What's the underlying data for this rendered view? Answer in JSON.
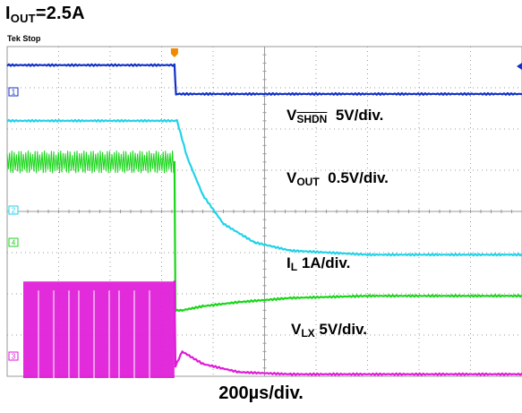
{
  "title": {
    "main": "I",
    "sub": "OUT",
    "rest": "=2.5A"
  },
  "scope_status": "Tek Stop",
  "timebase_label": "200µs/div.",
  "colors": {
    "ch1": "#1030c8",
    "ch2": "#22d3e8",
    "ch3": "#e01ad8",
    "ch4": "#19d619",
    "trigger": "#f08a00",
    "bar": "#c050c0",
    "grid": "#9a9a9a"
  },
  "channel_markers": {
    "ch1": "1",
    "ch2": "2",
    "ch4": "4",
    "ch3": "3"
  },
  "annotations": {
    "shdn": {
      "v": "V",
      "sub": "SHDN",
      "scale": "5V/div."
    },
    "vout": {
      "v": "V",
      "sub": "OUT",
      "scale": "0.5V/div."
    },
    "il": {
      "v": "I",
      "sub": "L",
      "scale": "1A/div."
    },
    "vlx": {
      "v": "V",
      "sub": "LX",
      "scale": "5V/div."
    }
  },
  "chart_data": {
    "type": "line",
    "x_unit": "div",
    "x_range": [
      0,
      10
    ],
    "y_unit": "div",
    "y_range": [
      0,
      8
    ],
    "event_x": 3.25,
    "grid": true,
    "series": [
      {
        "channel": "ch1",
        "x": [
          0,
          3.25,
          3.28,
          10
        ],
        "y": [
          7.55,
          7.55,
          6.85,
          6.85
        ]
      },
      {
        "channel": "ch2",
        "x": [
          0,
          3.3,
          3.5,
          3.8,
          4.2,
          4.8,
          5.5,
          7,
          10
        ],
        "y": [
          6.2,
          6.2,
          5.3,
          4.4,
          3.7,
          3.25,
          3.05,
          2.95,
          2.95
        ]
      },
      {
        "channel": "ch4",
        "x": [
          0,
          3.25,
          3.27,
          3.4,
          3.8,
          4.5,
          5.5,
          7,
          10
        ],
        "y": [
          5.2,
          5.2,
          1.6,
          1.6,
          1.7,
          1.8,
          1.9,
          1.95,
          1.95
        ],
        "ripple_until": 3.25,
        "ripple_amplitude": 0.55
      },
      {
        "channel": "ch3",
        "x": [
          0,
          3.25,
          3.27,
          3.4,
          3.8,
          4.5,
          5.5,
          10
        ],
        "y": [
          2.3,
          2.3,
          0.25,
          0.6,
          0.3,
          0.1,
          0.05,
          0.05
        ],
        "pulse_until": 3.25,
        "pulse_low": -0.9,
        "pulse_high": 2.3
      }
    ]
  }
}
